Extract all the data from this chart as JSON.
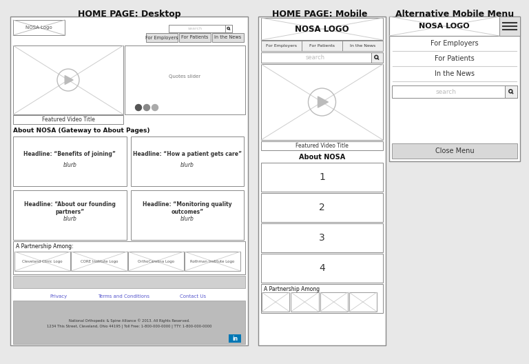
{
  "bg_color": "#e8e8e8",
  "title_desktop": "HOME PAGE: Desktop",
  "title_mobile": "HOME PAGE: Mobile",
  "title_alt_menu": "Alternative Mobile Menu",
  "border_color": "#888888",
  "light_gray": "#dddddd",
  "medium_gray": "#aaaaaa",
  "dark_gray": "#555555",
  "text_color": "#333333",
  "blue_link": "#5555cc",
  "footer_bg": "#bbbbbb",
  "nav_btn_bg": "#e0e0e0",
  "search_bg": "#f8f8f8",
  "close_menu_bg": "#d8d8d8"
}
